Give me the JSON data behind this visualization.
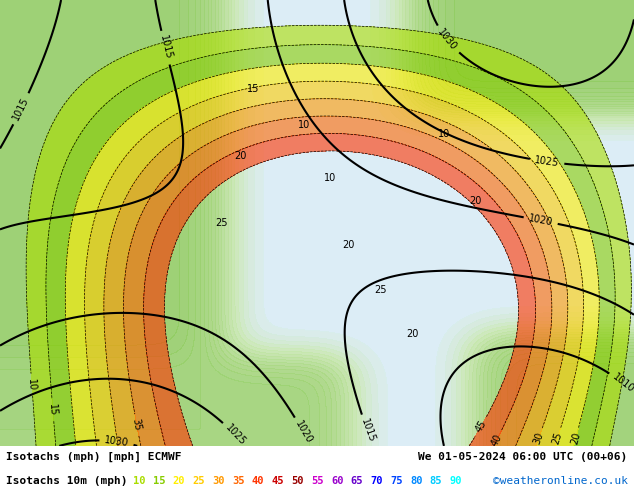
{
  "title_left": "Isotachs (mph) [mph] ECMWF",
  "title_right": "We 01-05-2024 06:00 UTC (00+06)",
  "legend_label": "Isotachs 10m (mph)",
  "legend_values": [
    10,
    15,
    20,
    25,
    30,
    35,
    40,
    45,
    50,
    55,
    60,
    65,
    70,
    75,
    80,
    85,
    90
  ],
  "legend_colors": [
    "#aadd00",
    "#88cc00",
    "#ffee00",
    "#ffcc00",
    "#ff9900",
    "#ff6600",
    "#ff3300",
    "#cc0000",
    "#990000",
    "#cc00cc",
    "#9900cc",
    "#6600cc",
    "#0000ff",
    "#0044ff",
    "#0088ff",
    "#00ccff",
    "#00ffff"
  ],
  "bg_color": "#ffffff",
  "map_bg_green": "#b5e8a0",
  "map_bg_light": "#e8f5e0",
  "map_bg_white": "#f0f0f0",
  "footer_color": "#000000",
  "credit": "©weatheronline.co.uk",
  "credit_color": "#0066cc",
  "figsize": [
    6.34,
    4.9
  ],
  "dpi": 100
}
